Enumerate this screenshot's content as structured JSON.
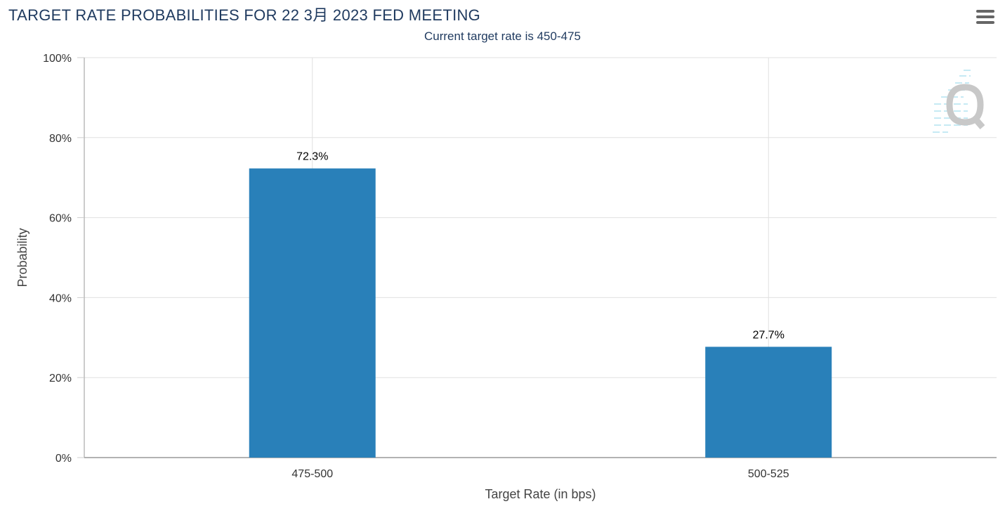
{
  "chart": {
    "title": "TARGET RATE PROBABILITIES FOR 22 3月 2023 FED MEETING",
    "subtitle": "Current target rate is 450-475",
    "menu_icon": "hamburger-menu-icon",
    "watermark_icon": "q-logo-icon"
  },
  "chart_data": {
    "type": "bar",
    "categories": [
      "475-500",
      "500-525"
    ],
    "values": [
      72.3,
      27.7
    ],
    "data_labels": [
      "72.3%",
      "27.7%"
    ],
    "xlabel": "Target Rate (in bps)",
    "ylabel": "Probability",
    "ylim": [
      0,
      100
    ],
    "yticks": [
      "0%",
      "20%",
      "40%",
      "60%",
      "80%",
      "100%"
    ],
    "ytick_values": [
      0,
      20,
      40,
      60,
      80,
      100
    ],
    "grid": true,
    "bar_color": "#2980b9"
  }
}
